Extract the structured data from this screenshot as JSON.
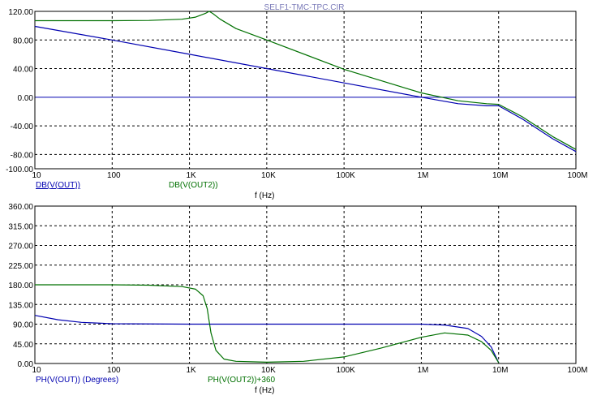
{
  "title": "SELF1-TMC-TPC.CIR",
  "colors": {
    "blue": "#0000b0",
    "green": "#007000",
    "title": "#7a7ab8",
    "axis": "#000000"
  },
  "chart_data": [
    {
      "type": "line",
      "x_scale": "log",
      "xlim": [
        10,
        100000000
      ],
      "ylim": [
        -100,
        120
      ],
      "x_ticks": [
        {
          "v": 10,
          "label": "10"
        },
        {
          "v": 100,
          "label": "100"
        },
        {
          "v": 1000,
          "label": "1K"
        },
        {
          "v": 10000,
          "label": "10K"
        },
        {
          "v": 100000,
          "label": "100K"
        },
        {
          "v": 1000000,
          "label": "1M"
        },
        {
          "v": 10000000,
          "label": "10M"
        },
        {
          "v": 100000000,
          "label": "100M"
        }
      ],
      "y_ticks": [
        {
          "v": 120,
          "label": "120.00"
        },
        {
          "v": 80,
          "label": "80.00"
        },
        {
          "v": 40,
          "label": "40.00"
        },
        {
          "v": 0,
          "label": "0.00"
        },
        {
          "v": -40,
          "label": "-40.00"
        },
        {
          "v": -80,
          "label": "-80.00"
        },
        {
          "v": -100,
          "label": "-100.00"
        }
      ],
      "xlabel": "f (Hz)",
      "ylabel": "",
      "grid": true,
      "zero_line": 0,
      "series": [
        {
          "name": "DB(V(OUT))",
          "color": "#0000b0",
          "x": [
            10,
            100,
            1000,
            10000,
            100000,
            1000000,
            3000000,
            7000000,
            10000000,
            20000000,
            50000000,
            100000000
          ],
          "y": [
            99,
            80,
            60,
            40,
            20,
            0,
            -9,
            -12,
            -12,
            -30,
            -58,
            -76
          ]
        },
        {
          "name": "DB(V(OUT2))",
          "color": "#007000",
          "x": [
            10,
            100,
            300,
            800,
            1200,
            1600,
            1800,
            2000,
            2500,
            4000,
            10000,
            100000,
            1000000,
            3000000,
            7000000,
            10000000,
            20000000,
            50000000,
            100000000
          ],
          "y": [
            107,
            107,
            107.3,
            109,
            112,
            117,
            120,
            117,
            109,
            96,
            80,
            39,
            6,
            -5,
            -9,
            -10,
            -27,
            -55,
            -73
          ]
        }
      ]
    },
    {
      "type": "line",
      "x_scale": "log",
      "xlim": [
        10,
        100000000
      ],
      "ylim": [
        0,
        360
      ],
      "x_ticks": [
        {
          "v": 10,
          "label": "10"
        },
        {
          "v": 100,
          "label": "100"
        },
        {
          "v": 1000,
          "label": "1K"
        },
        {
          "v": 10000,
          "label": "10K"
        },
        {
          "v": 100000,
          "label": "100K"
        },
        {
          "v": 1000000,
          "label": "1M"
        },
        {
          "v": 10000000,
          "label": "10M"
        },
        {
          "v": 100000000,
          "label": "100M"
        }
      ],
      "y_ticks": [
        {
          "v": 360,
          "label": "360.00"
        },
        {
          "v": 315,
          "label": "315.00"
        },
        {
          "v": 270,
          "label": "270.00"
        },
        {
          "v": 225,
          "label": "225.00"
        },
        {
          "v": 180,
          "label": "180.00"
        },
        {
          "v": 135,
          "label": "135.00"
        },
        {
          "v": 90,
          "label": "90.00"
        },
        {
          "v": 45,
          "label": "45.00"
        },
        {
          "v": 0,
          "label": "0.00"
        }
      ],
      "xlabel": "f (Hz)",
      "ylabel": "",
      "grid": true,
      "series": [
        {
          "name": "PH(V(OUT)) (Degrees)",
          "color": "#0000b0",
          "x": [
            10,
            20,
            40,
            100,
            1000,
            10000,
            100000,
            1000000,
            2000000,
            4000000,
            6000000,
            8000000,
            10000000
          ],
          "y": [
            110,
            100,
            94,
            91,
            90,
            90,
            90,
            90,
            88,
            80,
            62,
            38,
            2
          ]
        },
        {
          "name": "PH(V(OUT2))+360",
          "color": "#007000",
          "x": [
            10,
            100,
            300,
            800,
            1200,
            1500,
            1700,
            1900,
            2200,
            2800,
            4000,
            10000,
            30000,
            100000,
            300000,
            1000000,
            2000000,
            4000000,
            6000000,
            8000000,
            10000000
          ],
          "y": [
            180,
            180,
            179,
            176,
            170,
            155,
            125,
            70,
            30,
            10,
            5,
            3,
            5,
            15,
            35,
            60,
            70,
            65,
            50,
            30,
            2
          ]
        }
      ]
    }
  ]
}
